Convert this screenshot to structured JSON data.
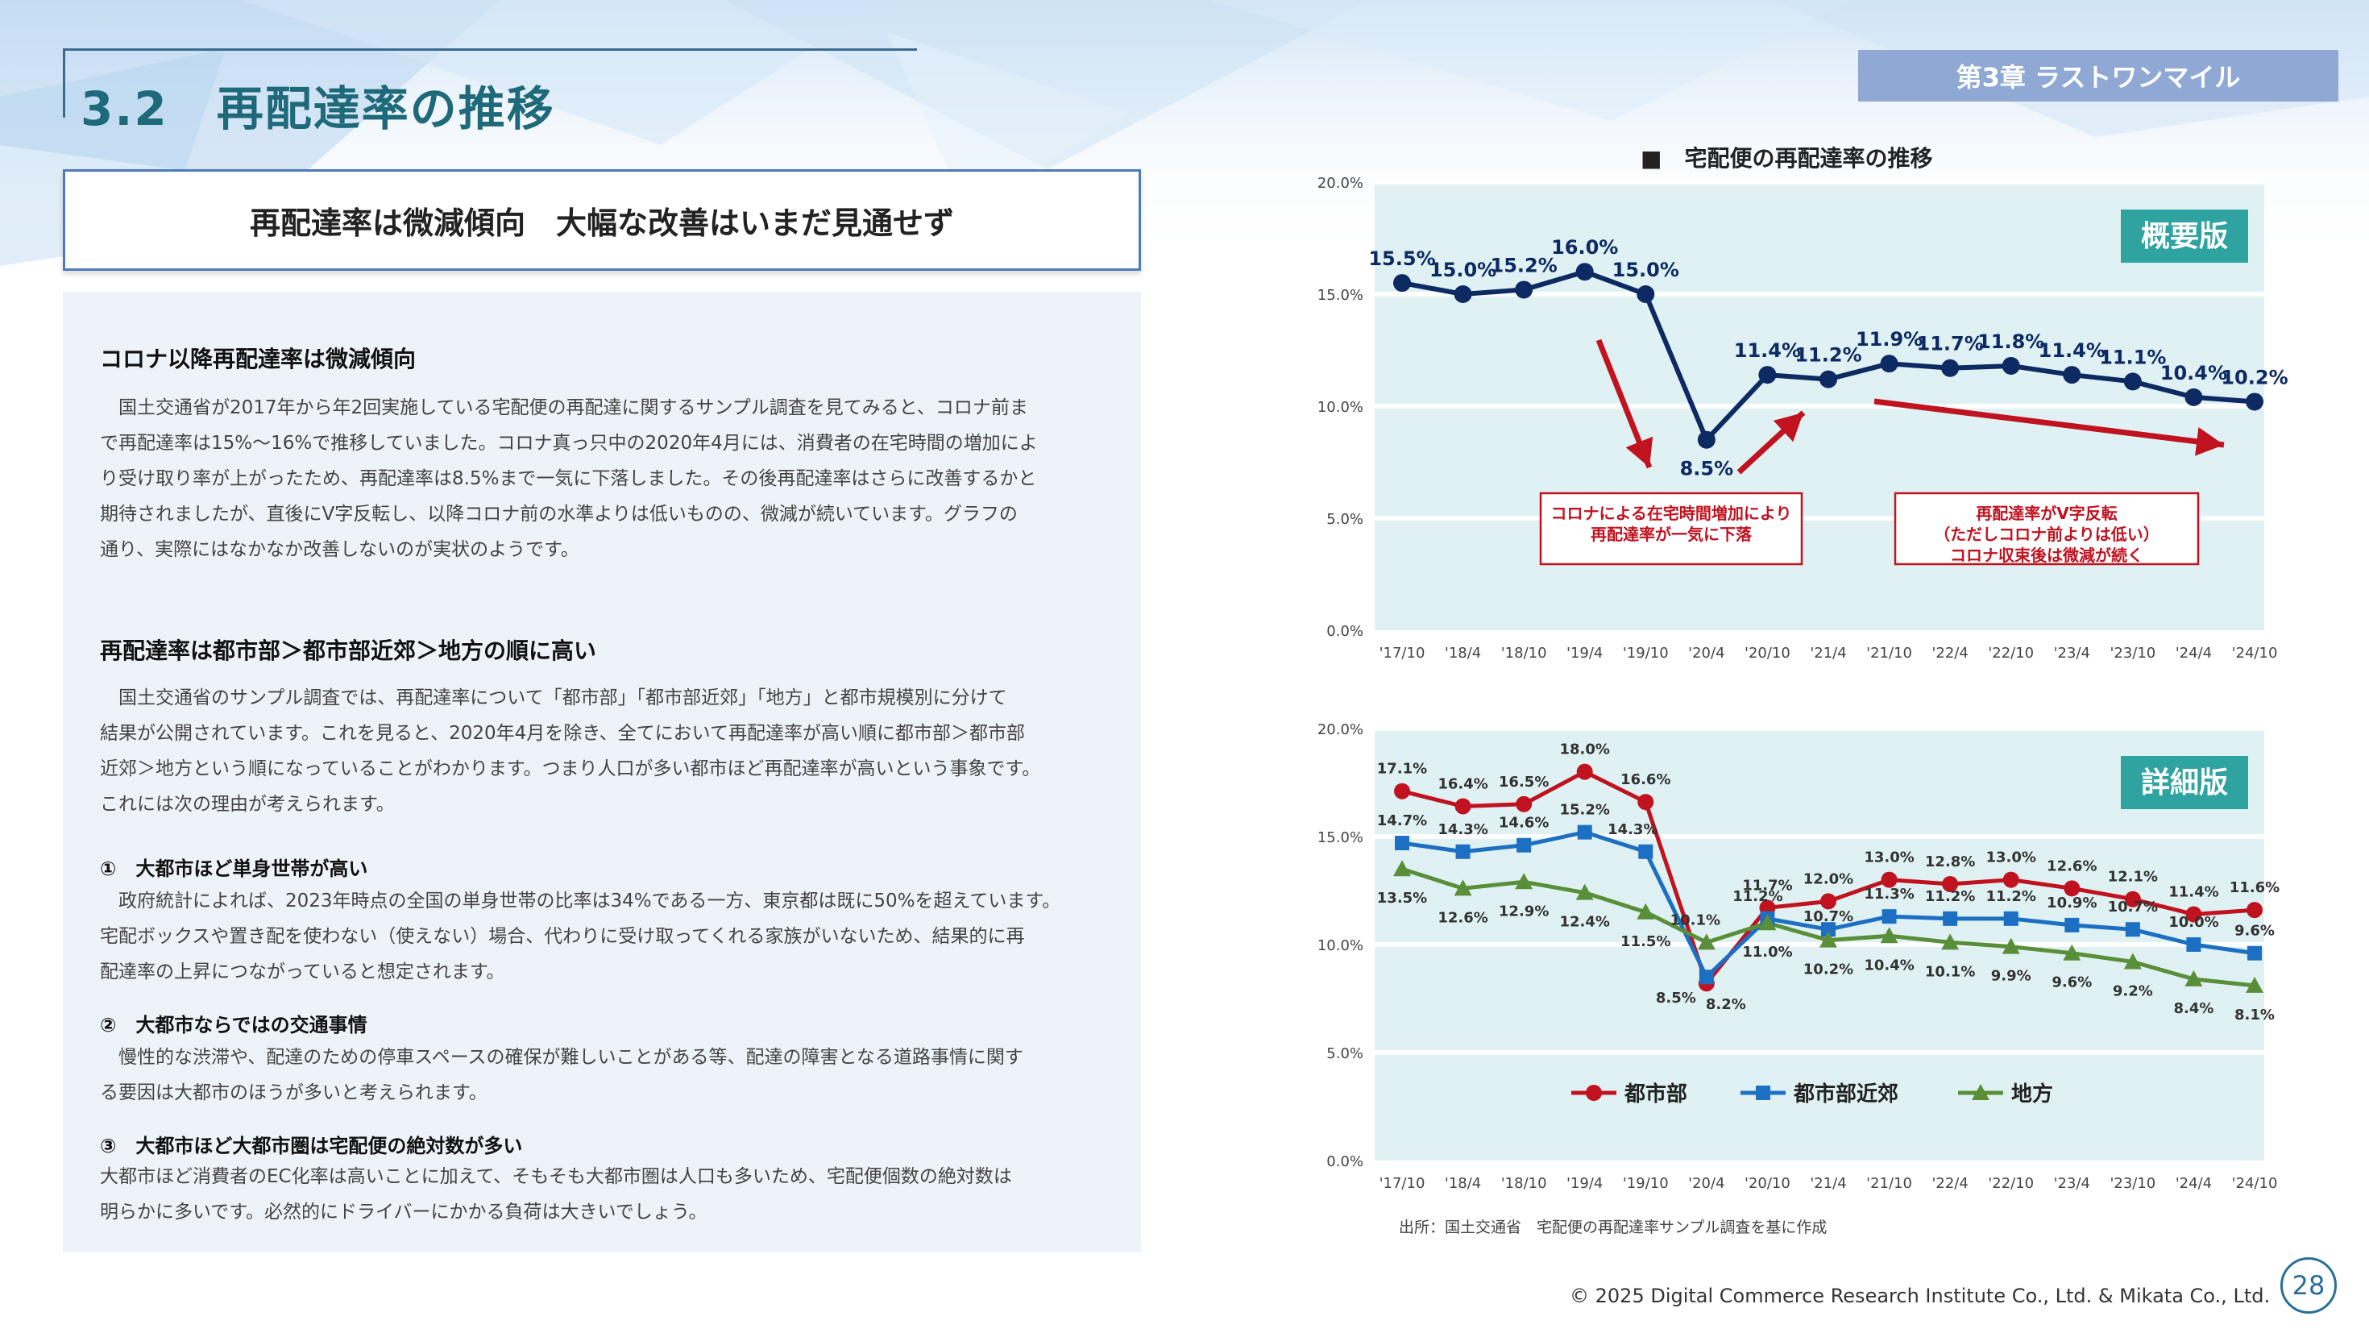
{
  "header": {
    "title": "3.2　再配達率の推移",
    "chapter": "第3章 ラストワンマイル"
  },
  "headline": "再配達率は微減傾向　大幅な改善はいまだ見通せず",
  "body": {
    "section1_heading": "コロナ以降再配達率は微減傾向",
    "section1_lines": [
      "　国土交通省が2017年から年2回実施している宅配便の再配達に関するサンプル調査を見てみると、コロナ前ま",
      "で再配達率は15%～16%で推移していました。コロナ真っ只中の2020年4月には、消費者の在宅時間の増加によ",
      "り受け取り率が上がったため、再配達率は8.5%まで一気に下落しました。その後再配達率はさらに改善するかと",
      "期待されましたが、直後にV字反転し、以降コロナ前の水準よりは低いものの、微減が続いています。グラフの",
      "通り、実際にはなかなか改善しないのが実状のようです。"
    ],
    "section2_heading": "再配達率は都市部＞都市部近郊＞地方の順に高い",
    "section2_lines": [
      "　国土交通省のサンプル調査では、再配達率について「都市部」「都市部近郊」「地方」と都市規模別に分けて",
      "結果が公開されています。これを見ると、2020年4月を除き、全てにおいて再配達率が高い順に都市部＞都市部",
      "近郊＞地方という順になっていることがわかります。つまり人口が多い都市ほど再配達率が高いという事象です。",
      "これには次の理由が考えられます。"
    ],
    "reason1_heading": "①　大都市ほど単身世帯が高い",
    "reason1_lines": [
      "　政府統計によれば、2023年時点の全国の単身世帯の比率は34%である一方、東京都は既に50%を超えています。",
      "宅配ボックスや置き配を使わない（使えない）場合、代わりに受け取ってくれる家族がいないため、結果的に再",
      "配達率の上昇につながっていると想定されます。"
    ],
    "reason2_heading": "②　大都市ならではの交通事情",
    "reason2_lines": [
      "　慢性的な渋滞や、配達のための停車スペースの確保が難しいことがある等、配達の障害となる道路事情に関す",
      "る要因は大都市のほうが多いと考えられます。"
    ],
    "reason3_heading": "③　大都市ほど大都市圏は宅配便の絶対数が多い",
    "reason3_lines": [
      "大都市ほど消費者のEC化率は高いことに加えて、そもそも大都市圏は人口も多いため、宅配便個数の絶対数は",
      "明らかに多いです。必然的にドライバーにかかる負荷は大きいでしょう。"
    ]
  },
  "chart_title": "■　宅配便の再配達率の推移",
  "source": "出所：国土交通省　宅配便の再配達率サンプル調査を基に作成",
  "copyright": "© 2025 Digital Commerce Research Institute Co., Ltd. & Mikata Co., Ltd.",
  "page_number": "28",
  "colors": {
    "overall": "#0d2a63",
    "urban": "#c0131f",
    "suburban": "#1c6fc2",
    "rural": "#5a8f3a",
    "panel_bg": "#dff1f3",
    "badge": "#2fa3a0",
    "annotation": "#c0131f"
  },
  "chart_data": [
    {
      "type": "line",
      "badge": "概要版",
      "categories": [
        "'17/10",
        "'18/4",
        "'18/10",
        "'19/4",
        "'19/10",
        "'20/4",
        "'20/10",
        "'21/4",
        "'21/10",
        "'22/4",
        "'22/10",
        "'23/4",
        "'23/10",
        "'24/4",
        "'24/10"
      ],
      "ylim": [
        0,
        20
      ],
      "yticks": [
        "0.0%",
        "5.0%",
        "10.0%",
        "15.0%",
        "20.0%"
      ],
      "series": [
        {
          "values": [
            15.5,
            15.0,
            15.2,
            16.0,
            15.0,
            8.5,
            11.4,
            11.2,
            11.9,
            11.7,
            11.8,
            11.4,
            11.1,
            10.4,
            10.2
          ],
          "labels": [
            "15.5%",
            "15.0%",
            "15.2%",
            "16.0%",
            "15.0%",
            "8.5%",
            "11.4%",
            "11.2%",
            "11.9%",
            "11.7%",
            "11.8%",
            "11.4%",
            "11.1%",
            "10.4%",
            "10.2%"
          ]
        }
      ],
      "annotations": [
        "コロナによる在宅時間増加により\n再配達率が一気に下落",
        "再配達率がV字反転\n（ただしコロナ前よりは低い）\nコロナ収束後は微減が続く"
      ],
      "grid": true
    },
    {
      "type": "line",
      "badge": "詳細版",
      "categories": [
        "'17/10",
        "'18/4",
        "'18/10",
        "'19/4",
        "'19/10",
        "'20/4",
        "'20/10",
        "'21/4",
        "'21/10",
        "'22/4",
        "'22/10",
        "'23/4",
        "'23/10",
        "'24/4",
        "'24/10"
      ],
      "ylim": [
        0,
        20
      ],
      "yticks": [
        "0.0%",
        "5.0%",
        "10.0%",
        "15.0%",
        "20.0%"
      ],
      "legend_position": "bottom",
      "series": [
        {
          "name": "都市部",
          "marker": "circle",
          "values": [
            17.1,
            16.4,
            16.5,
            18.0,
            16.6,
            8.2,
            11.7,
            12.0,
            13.0,
            12.8,
            13.0,
            12.6,
            12.1,
            11.4,
            11.6
          ],
          "labels": [
            "17.1%",
            "16.4%",
            "16.5%",
            "18.0%",
            "16.6%",
            "8.2%",
            "11.7%",
            "12.0%",
            "13.0%",
            "12.8%",
            "13.0%",
            "12.6%",
            "12.1%",
            "11.4%",
            "11.6%"
          ]
        },
        {
          "name": "都市部近郊",
          "marker": "square",
          "values": [
            14.7,
            14.3,
            14.6,
            15.2,
            14.3,
            8.5,
            11.2,
            10.7,
            11.3,
            11.2,
            11.2,
            10.9,
            10.7,
            10.0,
            9.6
          ],
          "labels": [
            "14.7%",
            "14.3%",
            "14.6%",
            "15.2%",
            "14.3%",
            "8.5%",
            "11.2%",
            "10.7%",
            "11.3%",
            "11.2%",
            "11.2%",
            "10.9%",
            "10.7%",
            "10.0%",
            "9.6%"
          ]
        },
        {
          "name": "地方",
          "marker": "triangle",
          "values": [
            13.5,
            12.6,
            12.9,
            12.4,
            11.5,
            10.1,
            11.0,
            10.2,
            10.4,
            10.1,
            9.9,
            9.6,
            9.2,
            8.4,
            8.1
          ],
          "labels": [
            "13.5%",
            "12.6%",
            "12.9%",
            "12.4%",
            "11.5%",
            "10.1%",
            "11.0%",
            "10.2%",
            "10.4%",
            "10.1%",
            "9.9%",
            "9.6%",
            "9.2%",
            "8.4%",
            "8.1%"
          ]
        }
      ],
      "grid": true
    }
  ]
}
